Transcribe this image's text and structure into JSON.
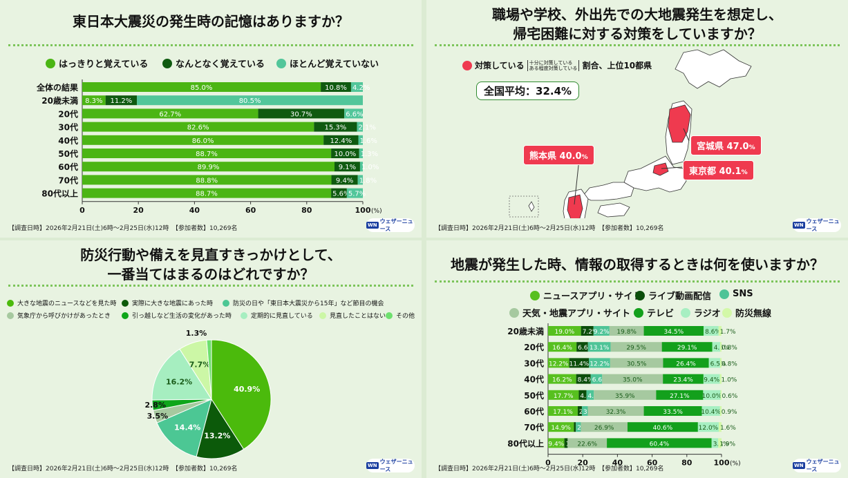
{
  "panel1": {
    "title": "東日本大震災の発生時の記憶はありますか？",
    "footer": "【調査日時】2026年2月21日(土)6時～2月25日(水)12時　【参加者数】10,269名",
    "logo": "ウェザーニュース",
    "logo_mark": "WN"
  },
  "panel2": {
    "title_line1": "職場や学校、外出先での大地震発生を想定し、",
    "title_line2": "帰宅困難に対する対策をしていますか？",
    "legend_pre": "対策している",
    "legend_note1": "十分に対策している",
    "legend_note2": "ある程度対策している",
    "legend_post": "割合、上位10都県",
    "avg": "全国平均：32.4%",
    "callouts": [
      {
        "name": "熊本県",
        "value": "40.0",
        "unit": "%"
      },
      {
        "name": "宮城県",
        "value": "47.0",
        "unit": "%"
      },
      {
        "name": "東京都",
        "value": "40.1",
        "unit": "%"
      }
    ],
    "footer": "【調査日時】2026年2月21日(土)6時～2月25日(水)12時　【参加者数】10,269名",
    "logo": "ウェザーニュース",
    "logo_mark": "WN"
  },
  "panel3": {
    "title_line1": "防災行動や備えを見直すきっかけとして、",
    "title_line2": "一番当てはまるのはどれですか？",
    "footer": "【調査日時】2026年2月21日(土)6時～2月25日(水)12時　【参加者数】10,269名",
    "logo": "ウェザーニュース",
    "logo_mark": "WN"
  },
  "panel4": {
    "title": "地震が発生した時、情報の取得するときは何を使いますか？",
    "footer": "【調査日時】2026年2月21日(土)6時～2月25日(水)12時　【参加者数】10,269名",
    "logo": "ウェザーニュース",
    "logo_mark": "WN"
  },
  "chart_data": [
    {
      "type": "bar",
      "orientation": "horizontal-stacked",
      "title": "東日本大震災の発生時の記憶はありますか？",
      "categories": [
        "全体の結果",
        "20歳未満",
        "20代",
        "30代",
        "40代",
        "50代",
        "60代",
        "70代",
        "80代以上"
      ],
      "series": [
        {
          "name": "はっきりと覚えている",
          "color": "#4bb514",
          "values": [
            85.0,
            8.3,
            62.7,
            82.6,
            86.0,
            88.7,
            89.9,
            88.8,
            88.7
          ]
        },
        {
          "name": "なんとなく覚えている",
          "color": "#0f5a10",
          "values": [
            10.8,
            11.2,
            30.7,
            15.3,
            12.4,
            10.0,
            9.1,
            9.4,
            5.6
          ]
        },
        {
          "name": "ほとんど覚えていない",
          "color": "#52c69a",
          "values": [
            4.2,
            80.5,
            6.6,
            2.1,
            1.6,
            1.3,
            1.0,
            1.8,
            5.7
          ]
        }
      ],
      "xticks": [
        "0",
        "20",
        "40",
        "60",
        "80",
        "100"
      ],
      "xunit": "(%)",
      "xlim": [
        0,
        100
      ]
    },
    {
      "type": "map",
      "title": "職場や学校、外出先での大地震発生を想定し、帰宅困難に対する対策をしていますか？",
      "national_average": 32.4,
      "highlighted": [
        {
          "name": "熊本県",
          "value": 40.0
        },
        {
          "name": "宮城県",
          "value": 47.0
        },
        {
          "name": "東京都",
          "value": 40.1
        }
      ],
      "highlight_color": "#ef3a4f"
    },
    {
      "type": "pie",
      "title": "防災行動や備えを見直すきっかけとして、一番当てはまるのはどれですか？",
      "slices": [
        {
          "name": "大きな地震のニュースなどを見た時",
          "value": 40.9,
          "color": "#4bba0c"
        },
        {
          "name": "実際に大きな地震にあった時",
          "value": 13.2,
          "color": "#0c5a0a"
        },
        {
          "name": "防災の日や「東日本大震災から15年」など節目の機会",
          "value": 14.4,
          "color": "#4cc794"
        },
        {
          "name": "気象庁から呼びかけがあったとき",
          "value": 3.5,
          "color": "#a6c99f"
        },
        {
          "name": "引っ越しなど生活の変化があった時",
          "value": 2.8,
          "color": "#0fa61b"
        },
        {
          "name": "定期的に見直している",
          "value": 16.2,
          "color": "#a6eec0"
        },
        {
          "name": "見直したことはない",
          "value": 7.7,
          "color": "#ccf7a6"
        },
        {
          "name": "その他",
          "value": 1.3,
          "color": "#6ee06e"
        }
      ]
    },
    {
      "type": "bar",
      "orientation": "horizontal-stacked",
      "title": "地震が発生した時、情報の取得するときは何を使いますか？",
      "categories": [
        "20歳未満",
        "20代",
        "30代",
        "40代",
        "50代",
        "60代",
        "70代",
        "80代以上"
      ],
      "series": [
        {
          "name": "ニュースアプリ・サイト",
          "color": "#57c01f",
          "values": [
            19.0,
            16.4,
            12.2,
            16.2,
            17.7,
            17.1,
            14.9,
            9.4
          ]
        },
        {
          "name": "ライブ動画配信",
          "color": "#0b4e0b",
          "values": [
            7.2,
            6.6,
            11.4,
            8.4,
            4.4,
            2.4,
            1.1,
            1.9
          ]
        },
        {
          "name": "SNS",
          "color": "#4ec497",
          "values": [
            9.2,
            13.1,
            12.2,
            6.6,
            4.3,
            3.4,
            2.9,
            0
          ]
        },
        {
          "name": "天気・地震アプリ・サイト",
          "color": "#a6c9a0",
          "values": [
            19.8,
            29.5,
            30.5,
            35.0,
            35.9,
            32.3,
            26.9,
            22.6
          ]
        },
        {
          "name": "テレビ",
          "color": "#13a01c",
          "values": [
            34.5,
            29.1,
            26.4,
            23.4,
            27.1,
            33.5,
            40.6,
            60.4
          ]
        },
        {
          "name": "ラジオ",
          "color": "#a7efc2",
          "values": [
            8.6,
            4.5,
            6.5,
            9.4,
            10.0,
            10.4,
            12.0,
            3.8
          ]
        },
        {
          "name": "防災無線",
          "color": "#d3f8a8",
          "values": [
            1.7,
            0.8,
            0.8,
            1.0,
            0.6,
            0.9,
            1.6,
            1.9
          ]
        }
      ],
      "xticks": [
        "0",
        "20",
        "40",
        "60",
        "80",
        "100"
      ],
      "xunit": "(%)",
      "xlim": [
        0,
        100
      ]
    }
  ]
}
